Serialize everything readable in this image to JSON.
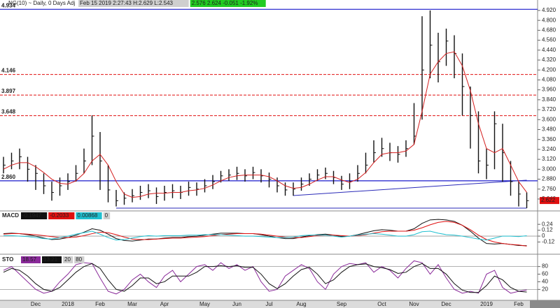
{
  "chart_data": [
    {
      "type": "ohlc",
      "title": "NG(10) ~ Daily, 0 Days Adj",
      "info": "Feb 15 2019 2:27:43 H:2.629 L:2.543",
      "quote": "2.576 2.624 -0.051 -1.92%",
      "categories": [
        null,
        null,
        null,
        null,
        "Dec",
        null,
        null,
        null,
        "2018",
        null,
        null,
        null,
        "Feb",
        null,
        null,
        null,
        "Mar",
        null,
        null,
        null,
        "Apr",
        null,
        null,
        null,
        null,
        "May",
        null,
        null,
        null,
        "Jun",
        null,
        null,
        null,
        "Jul",
        null,
        null,
        null,
        "Aug",
        null,
        null,
        null,
        null,
        "Sep",
        null,
        null,
        null,
        null,
        "Oct",
        null,
        null,
        null,
        "Nov",
        null,
        null,
        null,
        "Dec",
        null,
        null,
        null,
        null,
        "2019",
        null,
        null,
        null,
        "Feb",
        null
      ],
      "high": [
        3.15,
        3.2,
        3.25,
        3.15,
        3.05,
        2.95,
        2.85,
        2.9,
        2.95,
        3.05,
        3.25,
        3.65,
        3.45,
        3.05,
        2.75,
        2.72,
        2.76,
        2.8,
        2.82,
        2.78,
        2.8,
        2.82,
        2.8,
        2.85,
        2.84,
        2.88,
        2.93,
        2.98,
        3.0,
        3.03,
        3.0,
        3.03,
        3.0,
        2.96,
        2.9,
        2.84,
        2.84,
        2.9,
        2.95,
        3.0,
        3.02,
        2.98,
        2.92,
        2.95,
        3.05,
        3.2,
        3.35,
        3.38,
        3.32,
        3.28,
        3.35,
        3.8,
        4.85,
        4.92,
        4.65,
        4.7,
        4.62,
        4.4,
        4.0,
        3.7,
        3.25,
        3.7,
        3.55,
        3.1,
        2.85,
        2.72
      ],
      "low": [
        2.95,
        3.0,
        3.0,
        2.85,
        2.75,
        2.7,
        2.62,
        2.68,
        2.75,
        2.85,
        2.95,
        3.05,
        2.75,
        2.6,
        2.55,
        2.57,
        2.6,
        2.63,
        2.65,
        2.58,
        2.62,
        2.65,
        2.64,
        2.68,
        2.68,
        2.72,
        2.76,
        2.84,
        2.86,
        2.87,
        2.85,
        2.88,
        2.84,
        2.78,
        2.72,
        2.68,
        2.68,
        2.74,
        2.8,
        2.86,
        2.88,
        2.82,
        2.75,
        2.76,
        2.85,
        2.95,
        3.08,
        3.15,
        3.1,
        3.08,
        3.15,
        3.3,
        3.6,
        4.1,
        4.05,
        4.25,
        4.1,
        3.65,
        3.25,
        2.95,
        2.88,
        3.0,
        2.85,
        2.68,
        2.55,
        2.53
      ],
      "close": [
        3.05,
        3.1,
        3.15,
        3.0,
        2.95,
        2.8,
        2.72,
        2.8,
        2.85,
        2.95,
        3.1,
        3.4,
        3.1,
        2.75,
        2.62,
        2.65,
        2.68,
        2.72,
        2.74,
        2.67,
        2.72,
        2.74,
        2.72,
        2.78,
        2.76,
        2.8,
        2.85,
        2.92,
        2.93,
        2.95,
        2.92,
        2.96,
        2.92,
        2.88,
        2.8,
        2.75,
        2.76,
        2.82,
        2.88,
        2.93,
        2.95,
        2.9,
        2.82,
        2.85,
        2.95,
        3.05,
        3.2,
        3.25,
        3.2,
        3.18,
        3.25,
        3.4,
        4.2,
        4.5,
        4.3,
        4.55,
        4.4,
        4.0,
        3.65,
        3.1,
        3.05,
        3.55,
        3.2,
        2.85,
        2.7,
        2.62
      ],
      "ma": [
        3.0,
        3.05,
        3.08,
        3.08,
        3.03,
        2.96,
        2.88,
        2.83,
        2.82,
        2.86,
        2.95,
        3.1,
        3.18,
        3.05,
        2.85,
        2.7,
        2.66,
        2.67,
        2.7,
        2.71,
        2.71,
        2.72,
        2.72,
        2.74,
        2.75,
        2.77,
        2.81,
        2.86,
        2.9,
        2.92,
        2.93,
        2.93,
        2.93,
        2.91,
        2.86,
        2.8,
        2.77,
        2.78,
        2.82,
        2.87,
        2.91,
        2.91,
        2.87,
        2.84,
        2.88,
        2.96,
        3.08,
        3.18,
        3.2,
        3.2,
        3.22,
        3.3,
        3.7,
        4.15,
        4.3,
        4.4,
        4.42,
        4.25,
        3.95,
        3.55,
        3.25,
        3.2,
        3.25,
        3.05,
        2.85,
        2.72
      ],
      "bar_color": "#111111",
      "ma_color": "#d42020",
      "ylim": [
        2.513,
        5.004
      ],
      "yticks": [
        {
          "value": 4.92,
          "label": "4.920"
        },
        {
          "value": 4.8,
          "label": "4.800"
        },
        {
          "value": 4.68,
          "label": "4.680"
        },
        {
          "value": 4.56,
          "label": "4.560"
        },
        {
          "value": 4.44,
          "label": "4.440"
        },
        {
          "value": 4.32,
          "label": "4.320"
        },
        {
          "value": 4.2,
          "label": "4.200"
        },
        {
          "value": 4.08,
          "label": "4.080"
        },
        {
          "value": 3.96,
          "label": "3.960"
        },
        {
          "value": 3.84,
          "label": "3.840"
        },
        {
          "value": 3.72,
          "label": "3.720"
        },
        {
          "value": 3.6,
          "label": "3.600"
        },
        {
          "value": 3.48,
          "label": "3.480"
        },
        {
          "value": 3.36,
          "label": "3.360"
        },
        {
          "value": 3.24,
          "label": "3.240"
        },
        {
          "value": 3.12,
          "label": "3.120"
        },
        {
          "value": 3.0,
          "label": "3.000"
        },
        {
          "value": 2.88,
          "label": "2.880"
        },
        {
          "value": 2.76,
          "label": "2.760"
        },
        {
          "value": 2.64,
          "label": "2.640"
        }
      ],
      "levels": [
        {
          "value": 4.934,
          "label": "4.934",
          "color": "#1a1acc",
          "dashed": false
        },
        {
          "value": 4.146,
          "label": "4.146",
          "color": "#e01010",
          "dashed": true
        },
        {
          "value": 3.897,
          "label": "3.897",
          "color": "#e01010",
          "dashed": true
        },
        {
          "value": 3.648,
          "label": "3.648",
          "color": "#e01010",
          "dashed": true
        },
        {
          "value": 2.86,
          "label": "2.860",
          "color": "#1a1acc",
          "dashed": false
        }
      ],
      "trendlines": [
        {
          "x": [
            14,
            65
          ],
          "y": [
            2.53,
            2.53
          ],
          "color": "#2a2ab8"
        },
        {
          "x": [
            36,
            65
          ],
          "y": [
            2.682,
            2.868
          ],
          "color": "#2a2ab8"
        }
      ],
      "last": {
        "value": 2.622,
        "label": "2.622",
        "color": "#e01010"
      }
    },
    {
      "type": "line",
      "title": "MACD",
      "series": [
        {
          "color": "#111111",
          "values": [
            0.05,
            0.06,
            0.05,
            0.03,
            0.0,
            -0.04,
            -0.07,
            -0.06,
            -0.03,
            0.02,
            0.08,
            0.15,
            0.12,
            0.04,
            -0.05,
            -0.09,
            -0.1,
            -0.08,
            -0.06,
            -0.06,
            -0.04,
            -0.03,
            -0.03,
            -0.01,
            0.0,
            0.02,
            0.04,
            0.06,
            0.06,
            0.06,
            0.05,
            0.05,
            0.03,
            0.0,
            -0.03,
            -0.05,
            -0.05,
            -0.02,
            0.01,
            0.03,
            0.04,
            0.02,
            -0.01,
            0.0,
            0.03,
            0.07,
            0.11,
            0.13,
            0.12,
            0.1,
            0.1,
            0.15,
            0.26,
            0.33,
            0.34,
            0.33,
            0.3,
            0.22,
            0.1,
            -0.04,
            -0.15,
            -0.16,
            -0.15,
            -0.17,
            -0.19,
            -0.1947
          ]
        },
        {
          "color": "#e01010",
          "values": [
            0.04,
            0.05,
            0.05,
            0.04,
            0.03,
            0.01,
            -0.01,
            -0.03,
            -0.03,
            -0.02,
            0.01,
            0.05,
            0.08,
            0.07,
            0.03,
            -0.02,
            -0.06,
            -0.07,
            -0.07,
            -0.06,
            -0.05,
            -0.04,
            -0.04,
            -0.03,
            -0.02,
            -0.01,
            0.01,
            0.03,
            0.04,
            0.05,
            0.05,
            0.05,
            0.04,
            0.02,
            0.0,
            -0.02,
            -0.03,
            -0.03,
            -0.01,
            0.01,
            0.02,
            0.02,
            0.01,
            0.0,
            0.01,
            0.03,
            0.06,
            0.09,
            0.1,
            0.1,
            0.1,
            0.12,
            0.17,
            0.23,
            0.28,
            0.3,
            0.28,
            0.22,
            0.13,
            0.02,
            -0.07,
            -0.12,
            -0.15,
            -0.17,
            -0.18,
            -0.2033
          ]
        },
        {
          "color": "#20c0d0",
          "values": [
            0.01,
            0.01,
            0.0,
            -0.01,
            -0.03,
            -0.05,
            -0.06,
            -0.03,
            0.0,
            0.04,
            0.07,
            0.1,
            0.04,
            -0.03,
            -0.08,
            -0.07,
            -0.04,
            -0.01,
            0.01,
            0.0,
            0.01,
            0.01,
            0.01,
            0.02,
            0.02,
            0.03,
            0.03,
            0.03,
            0.02,
            0.01,
            0.0,
            0.0,
            -0.01,
            -0.02,
            -0.03,
            -0.03,
            -0.02,
            0.01,
            0.02,
            0.02,
            0.02,
            0.0,
            -0.02,
            0.0,
            0.02,
            0.04,
            0.05,
            0.04,
            0.02,
            0.0,
            0.0,
            0.03,
            0.09,
            0.1,
            0.06,
            0.03,
            0.02,
            0.0,
            -0.03,
            -0.06,
            -0.08,
            -0.04,
            0.0,
            0.0,
            -0.01,
            0.00868
          ]
        }
      ],
      "readouts": [
        {
          "value": -0.1947,
          "label": "-0.1947",
          "color": "#111111"
        },
        {
          "value": -0.2033,
          "label": "-0.2033",
          "color": "#e01010"
        },
        {
          "value": 0.00868,
          "label": "0.00868",
          "color": "#20c0d0"
        }
      ],
      "levels": [
        {
          "value": 0,
          "label": "0",
          "color": "#999999"
        }
      ],
      "ylim": [
        -0.34,
        0.47
      ],
      "yticks": [
        0.24,
        0.12,
        0,
        -0.12
      ]
    },
    {
      "type": "line",
      "title": "STO",
      "series": [
        {
          "color": "#8a2a9a",
          "values": [
            70,
            80,
            60,
            40,
            20,
            10,
            15,
            40,
            60,
            85,
            90,
            88,
            50,
            15,
            8,
            20,
            45,
            60,
            40,
            25,
            55,
            70,
            40,
            60,
            80,
            85,
            70,
            90,
            75,
            85,
            70,
            80,
            40,
            15,
            20,
            55,
            70,
            85,
            75,
            40,
            20,
            60,
            80,
            88,
            85,
            90,
            65,
            80,
            70,
            50,
            75,
            95,
            90,
            60,
            85,
            50,
            20,
            10,
            15,
            10,
            60,
            70,
            25,
            10,
            15,
            18.57
          ]
        },
        {
          "color": "#111111",
          "values": [
            65,
            75,
            70,
            55,
            35,
            20,
            15,
            25,
            45,
            65,
            80,
            88,
            75,
            45,
            20,
            15,
            30,
            50,
            50,
            35,
            40,
            55,
            55,
            55,
            65,
            80,
            80,
            82,
            80,
            82,
            78,
            78,
            60,
            35,
            22,
            35,
            55,
            72,
            78,
            60,
            35,
            45,
            65,
            80,
            85,
            87,
            80,
            77,
            72,
            62,
            65,
            80,
            88,
            75,
            75,
            60,
            35,
            18,
            12,
            12,
            30,
            55,
            45,
            25,
            15,
            13.21
          ]
        }
      ],
      "readouts": [
        {
          "value": 18.57,
          "label": "18.57",
          "color": "#8a2a9a"
        },
        {
          "value": 13.21,
          "label": "13.21",
          "color": "#111111"
        }
      ],
      "levels": [
        {
          "value": 20,
          "label": "20",
          "color": "#999999"
        },
        {
          "value": 80,
          "label": "80",
          "color": "#999999"
        }
      ],
      "ylim": [
        -5,
        105
      ],
      "yticks": [
        80,
        60,
        40,
        20
      ]
    }
  ]
}
